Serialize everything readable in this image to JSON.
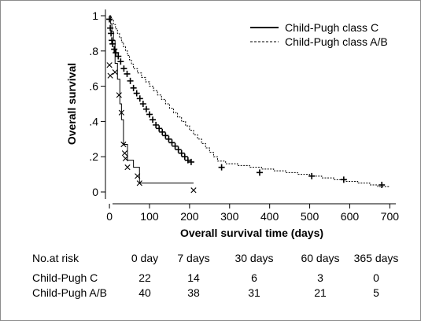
{
  "chart_data": {
    "type": "line",
    "title": "",
    "xlabel": "Overall survival time (days)",
    "ylabel": "Overall survival",
    "xlim": [
      -10,
      715
    ],
    "ylim": [
      0,
      1
    ],
    "x_ticks": [
      0,
      100,
      200,
      300,
      400,
      500,
      600,
      700
    ],
    "x_tick_labels": [
      "0",
      "100",
      "200",
      "300",
      "400",
      "500",
      "600",
      "700"
    ],
    "y_ticks": [
      0,
      0.2,
      0.4,
      0.6,
      0.8,
      1
    ],
    "y_tick_labels": [
      "0",
      ".2",
      ".4",
      ".6",
      ".8",
      "1"
    ],
    "legend_position": "top-right",
    "series": [
      {
        "name": "Child-Pugh class C",
        "line_style": "solid",
        "censor_marker": "x",
        "color": "#000000",
        "steps": [
          [
            0,
            1
          ],
          [
            3,
            0.955
          ],
          [
            6,
            0.91
          ],
          [
            10,
            0.86
          ],
          [
            14,
            0.73
          ],
          [
            20,
            0.64
          ],
          [
            26,
            0.5
          ],
          [
            30,
            0.41
          ],
          [
            35,
            0.27
          ],
          [
            45,
            0.18
          ],
          [
            60,
            0.14
          ],
          [
            75,
            0.05
          ],
          [
            210,
            0.05
          ]
        ],
        "censored": [
          [
            0,
            0.72
          ],
          [
            2,
            0.66
          ],
          [
            14,
            0.68
          ],
          [
            24,
            0.55
          ],
          [
            30,
            0.45
          ],
          [
            35,
            0.27
          ],
          [
            38,
            0.22
          ],
          [
            40,
            0.19
          ],
          [
            45,
            0.14
          ],
          [
            70,
            0.09
          ],
          [
            75,
            0.05
          ],
          [
            210,
            0.01
          ]
        ]
      },
      {
        "name": "Child-Pugh class A/B",
        "line_style": "dashed",
        "censor_marker": "plus",
        "color": "#000000",
        "steps": [
          [
            0,
            1
          ],
          [
            5,
            0.975
          ],
          [
            10,
            0.95
          ],
          [
            15,
            0.925
          ],
          [
            20,
            0.9
          ],
          [
            25,
            0.875
          ],
          [
            30,
            0.85
          ],
          [
            35,
            0.825
          ],
          [
            40,
            0.8
          ],
          [
            45,
            0.775
          ],
          [
            50,
            0.75
          ],
          [
            55,
            0.725
          ],
          [
            60,
            0.7
          ],
          [
            70,
            0.675
          ],
          [
            80,
            0.65
          ],
          [
            90,
            0.625
          ],
          [
            100,
            0.6
          ],
          [
            110,
            0.575
          ],
          [
            120,
            0.55
          ],
          [
            130,
            0.525
          ],
          [
            140,
            0.5
          ],
          [
            150,
            0.475
          ],
          [
            160,
            0.45
          ],
          [
            170,
            0.425
          ],
          [
            180,
            0.4
          ],
          [
            190,
            0.375
          ],
          [
            200,
            0.35
          ],
          [
            210,
            0.325
          ],
          [
            220,
            0.3
          ],
          [
            230,
            0.275
          ],
          [
            240,
            0.25
          ],
          [
            250,
            0.225
          ],
          [
            260,
            0.2
          ],
          [
            270,
            0.175
          ],
          [
            290,
            0.16
          ],
          [
            320,
            0.15
          ],
          [
            350,
            0.14
          ],
          [
            380,
            0.13
          ],
          [
            410,
            0.12
          ],
          [
            440,
            0.11
          ],
          [
            470,
            0.1
          ],
          [
            500,
            0.09
          ],
          [
            530,
            0.08
          ],
          [
            560,
            0.07
          ],
          [
            590,
            0.06
          ],
          [
            620,
            0.05
          ],
          [
            650,
            0.04
          ],
          [
            670,
            0.03
          ],
          [
            700,
            0.03
          ]
        ],
        "censored": [
          [
            0,
            0.98
          ],
          [
            2,
            0.93
          ],
          [
            4,
            0.9
          ],
          [
            6,
            0.86
          ],
          [
            8,
            0.84
          ],
          [
            12,
            0.81
          ],
          [
            16,
            0.79
          ],
          [
            22,
            0.77
          ],
          [
            28,
            0.74
          ],
          [
            36,
            0.7
          ],
          [
            44,
            0.67
          ],
          [
            52,
            0.63
          ],
          [
            60,
            0.59
          ],
          [
            68,
            0.56
          ],
          [
            76,
            0.53
          ],
          [
            84,
            0.5
          ],
          [
            92,
            0.47
          ],
          [
            100,
            0.44
          ],
          [
            108,
            0.41
          ],
          [
            116,
            0.38
          ],
          [
            124,
            0.36
          ],
          [
            132,
            0.34
          ],
          [
            140,
            0.32
          ],
          [
            148,
            0.3
          ],
          [
            156,
            0.28
          ],
          [
            164,
            0.26
          ],
          [
            172,
            0.24
          ],
          [
            180,
            0.22
          ],
          [
            188,
            0.2
          ],
          [
            196,
            0.18
          ],
          [
            204,
            0.17
          ],
          [
            280,
            0.14
          ],
          [
            375,
            0.11
          ],
          [
            505,
            0.09
          ],
          [
            585,
            0.07
          ],
          [
            680,
            0.04
          ]
        ]
      }
    ]
  },
  "risk_table": {
    "title": "No.at risk",
    "columns": [
      "0 day",
      "7 days",
      "30 days",
      "60 days",
      "365 days"
    ],
    "rows": [
      {
        "label": "Child-Pugh C",
        "values": [
          "22",
          "14",
          "6",
          "3",
          "0"
        ]
      },
      {
        "label": "Child-Pugh A/B",
        "values": [
          "40",
          "38",
          "31",
          "21",
          "5"
        ]
      }
    ]
  }
}
